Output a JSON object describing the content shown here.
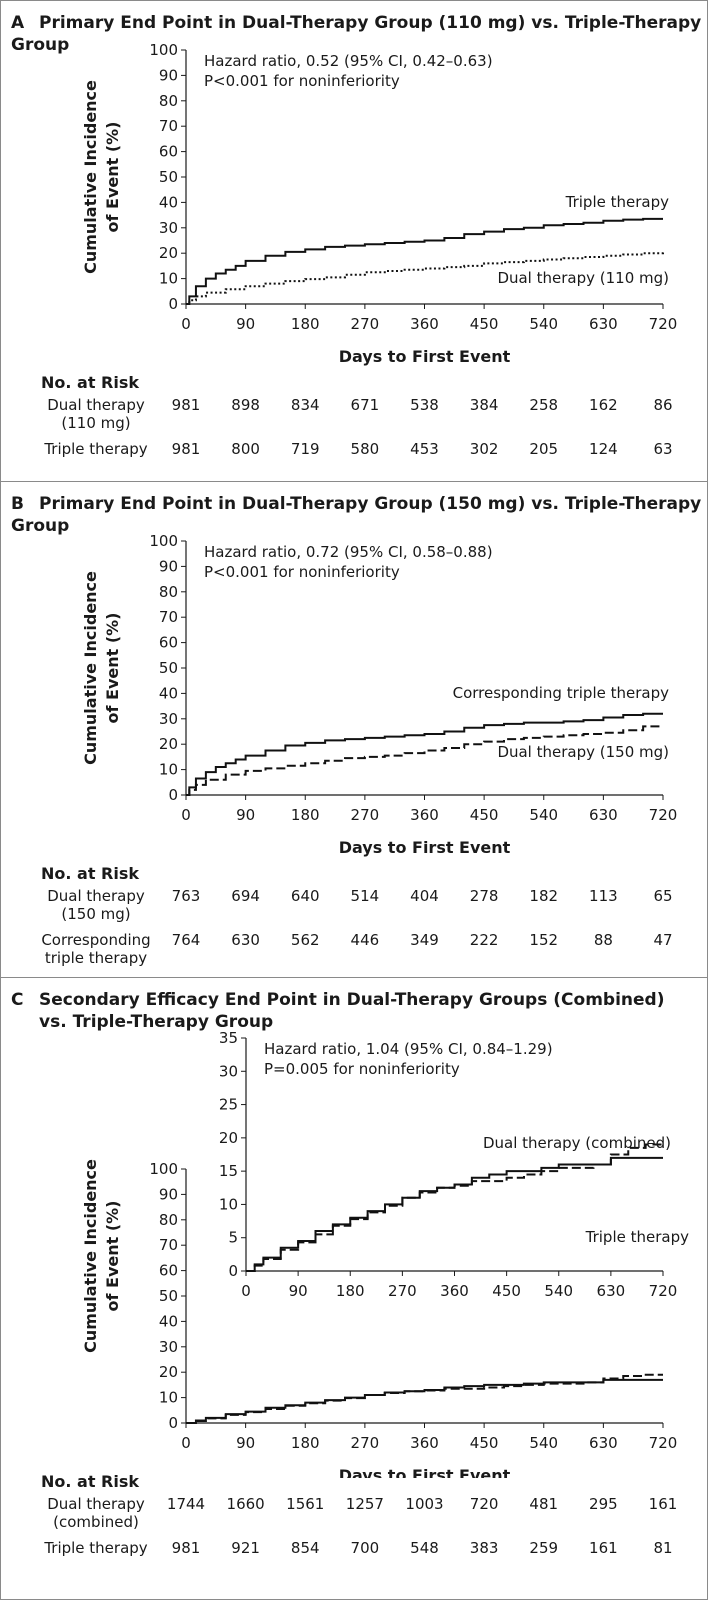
{
  "chart_data": [
    {
      "letter": "A",
      "title": "Primary End Point in Dual-Therapy Group (110 mg) vs. Triple-Therapy Group",
      "type": "line",
      "ylabel_line1": "Cumulative Incidence",
      "ylabel_line2": "of Event (%)",
      "xlabel": "Days to First Event",
      "x_ticks": [
        0,
        90,
        180,
        270,
        360,
        450,
        540,
        630,
        720
      ],
      "y_ticks": [
        0,
        10,
        20,
        30,
        40,
        50,
        60,
        70,
        80,
        90,
        100
      ],
      "xlim": [
        0,
        720
      ],
      "ylim": [
        0,
        100
      ],
      "annotation": [
        "Hazard ratio, 0.52 (95% CI, 0.42–0.63)",
        "P<0.001 for noninferiority"
      ],
      "series": [
        {
          "name": "Triple therapy",
          "style": "solid",
          "x": [
            0,
            5,
            15,
            30,
            45,
            60,
            75,
            90,
            120,
            150,
            180,
            210,
            240,
            270,
            300,
            330,
            360,
            390,
            420,
            450,
            480,
            510,
            540,
            570,
            600,
            630,
            660,
            690,
            720
          ],
          "y": [
            0,
            3,
            7,
            10,
            12,
            13.5,
            15,
            17,
            19,
            20.5,
            21.5,
            22.5,
            23,
            23.5,
            24,
            24.5,
            25,
            26,
            27.5,
            28.5,
            29.5,
            30,
            31,
            31.5,
            32,
            32.8,
            33.2,
            33.5,
            33.5
          ]
        },
        {
          "name": "Dual therapy (110 mg)",
          "style": "dotted",
          "x": [
            0,
            5,
            15,
            30,
            60,
            90,
            120,
            150,
            180,
            210,
            240,
            270,
            300,
            330,
            360,
            390,
            420,
            450,
            480,
            510,
            540,
            570,
            600,
            630,
            660,
            690,
            720
          ],
          "y": [
            0,
            1.5,
            3,
            4.5,
            5.8,
            7,
            8,
            9,
            9.8,
            10.5,
            11.5,
            12.5,
            13,
            13.5,
            14,
            14.5,
            15,
            16,
            16.5,
            17,
            17.5,
            18,
            18.5,
            19,
            19.5,
            20,
            21
          ]
        }
      ],
      "label_upper": "Triple therapy",
      "label_lower": "Dual therapy (110 mg)",
      "risk_header": "No. at Risk",
      "risk_rows": [
        {
          "label_line1": "Dual therapy",
          "label_line2": "(110 mg)",
          "values": [
            "981",
            "898",
            "834",
            "671",
            "538",
            "384",
            "258",
            "162",
            "86"
          ]
        },
        {
          "label_line1": "Triple therapy",
          "label_line2": "",
          "values": [
            "981",
            "800",
            "719",
            "580",
            "453",
            "302",
            "205",
            "124",
            "63"
          ]
        }
      ]
    },
    {
      "letter": "B",
      "title": "Primary End Point in Dual-Therapy Group (150 mg) vs. Triple-Therapy Group",
      "type": "line",
      "ylabel_line1": "Cumulative Incidence",
      "ylabel_line2": "of Event (%)",
      "xlabel": "Days to First Event",
      "x_ticks": [
        0,
        90,
        180,
        270,
        360,
        450,
        540,
        630,
        720
      ],
      "y_ticks": [
        0,
        10,
        20,
        30,
        40,
        50,
        60,
        70,
        80,
        90,
        100
      ],
      "xlim": [
        0,
        720
      ],
      "ylim": [
        0,
        100
      ],
      "annotation": [
        "Hazard ratio, 0.72 (95% CI, 0.58–0.88)",
        "P<0.001 for noninferiority"
      ],
      "series": [
        {
          "name": "Corresponding triple therapy",
          "style": "solid",
          "x": [
            0,
            5,
            15,
            30,
            45,
            60,
            75,
            90,
            120,
            150,
            180,
            210,
            240,
            270,
            300,
            330,
            360,
            390,
            420,
            450,
            480,
            510,
            540,
            570,
            600,
            630,
            660,
            690,
            720
          ],
          "y": [
            0,
            3,
            6.5,
            9,
            11,
            12.5,
            14,
            15.5,
            17.5,
            19.5,
            20.5,
            21.5,
            22,
            22.5,
            23,
            23.5,
            24,
            25,
            26.5,
            27.5,
            28,
            28.5,
            28.5,
            29,
            29.5,
            30.5,
            31.5,
            32,
            32
          ]
        },
        {
          "name": "Dual therapy (150 mg)",
          "style": "dashed",
          "x": [
            0,
            5,
            15,
            30,
            60,
            90,
            120,
            150,
            180,
            210,
            240,
            270,
            300,
            330,
            360,
            390,
            420,
            450,
            480,
            510,
            540,
            570,
            600,
            630,
            660,
            690,
            720
          ],
          "y": [
            0,
            2,
            4,
            6,
            8,
            9.5,
            10.5,
            11.5,
            12.5,
            13.5,
            14.5,
            15,
            15.5,
            16.5,
            17.5,
            18.5,
            20,
            21,
            22,
            22.5,
            23,
            23.5,
            24,
            24.5,
            25.5,
            27,
            27
          ]
        }
      ],
      "label_upper": "Corresponding triple therapy",
      "label_lower": "Dual therapy (150 mg)",
      "risk_header": "No. at Risk",
      "risk_rows": [
        {
          "label_line1": "Dual therapy",
          "label_line2": "(150 mg)",
          "values": [
            "763",
            "694",
            "640",
            "514",
            "404",
            "278",
            "182",
            "113",
            "65"
          ]
        },
        {
          "label_line1": "Corresponding",
          "label_line2": "triple therapy",
          "values": [
            "764",
            "630",
            "562",
            "446",
            "349",
            "222",
            "152",
            "88",
            "47"
          ]
        }
      ]
    },
    {
      "letter": "C",
      "title": "Secondary Efficacy End Point in Dual-Therapy Groups (Combined)",
      "title_line2": "vs. Triple-Therapy Group",
      "type": "line",
      "ylabel_line1": "Cumulative Incidence",
      "ylabel_line2": "of Event (%)",
      "xlabel": "Days to First Event",
      "x_ticks": [
        0,
        90,
        180,
        270,
        360,
        450,
        540,
        630,
        720
      ],
      "y_ticks": [
        0,
        10,
        20,
        30,
        40,
        50,
        60,
        70,
        80,
        90,
        100
      ],
      "xlim": [
        0,
        720
      ],
      "ylim": [
        0,
        100
      ],
      "inset": {
        "x_ticks": [
          0,
          90,
          180,
          270,
          360,
          450,
          540,
          630,
          720
        ],
        "y_ticks": [
          0,
          5,
          10,
          15,
          20,
          25,
          30,
          35
        ],
        "xlim": [
          0,
          720
        ],
        "ylim": [
          0,
          35
        ]
      },
      "annotation": [
        "Hazard ratio, 1.04 (95% CI, 0.84–1.29)",
        "P=0.005 for noninferiority"
      ],
      "series": [
        {
          "name": "Triple therapy",
          "style": "solid",
          "x": [
            0,
            15,
            30,
            60,
            90,
            120,
            150,
            180,
            210,
            240,
            270,
            300,
            330,
            360,
            390,
            420,
            450,
            480,
            510,
            540,
            570,
            600,
            630,
            660,
            690,
            720
          ],
          "y": [
            0,
            1,
            2,
            3.5,
            4.5,
            6,
            7,
            8,
            9,
            10,
            11,
            12,
            12.5,
            13,
            14,
            14.5,
            15,
            15,
            15.5,
            16,
            16,
            16,
            17,
            17,
            17,
            17
          ]
        },
        {
          "name": "Dual therapy (combined)",
          "style": "dashed",
          "x": [
            0,
            15,
            30,
            60,
            90,
            120,
            150,
            180,
            210,
            240,
            270,
            300,
            330,
            360,
            390,
            420,
            450,
            480,
            510,
            540,
            570,
            600,
            630,
            660,
            690,
            720
          ],
          "y": [
            0,
            0.8,
            1.8,
            3.2,
            4.3,
            5.5,
            6.8,
            7.8,
            8.8,
            9.8,
            11,
            11.8,
            12.5,
            12.8,
            13.5,
            13.5,
            14,
            14.5,
            15,
            15.5,
            15.5,
            16,
            17.5,
            18.5,
            19,
            19
          ]
        }
      ],
      "label_upper": "Dual therapy (combined)",
      "label_lower": "Triple therapy",
      "risk_header": "No. at Risk",
      "risk_rows": [
        {
          "label_line1": "Dual therapy",
          "label_line2": "(combined)",
          "values": [
            "1744",
            "1660",
            "1561",
            "1257",
            "1003",
            "720",
            "481",
            "295",
            "161"
          ]
        },
        {
          "label_line1": "Triple therapy",
          "label_line2": "",
          "values": [
            "981",
            "921",
            "854",
            "700",
            "548",
            "383",
            "259",
            "161",
            "81"
          ]
        }
      ]
    }
  ]
}
